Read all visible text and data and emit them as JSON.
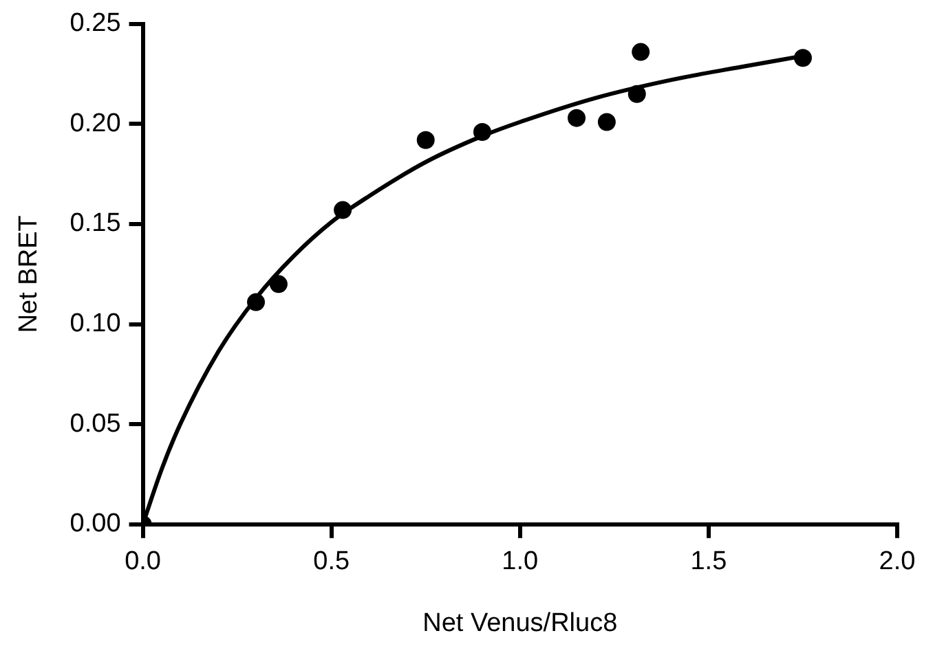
{
  "chart_data": {
    "type": "scatter",
    "xlabel": "Net Venus/Rluc8",
    "ylabel": "Net BRET",
    "xlim": [
      0,
      2.0
    ],
    "xticks": [
      {
        "value": 0,
        "label": "0.0"
      },
      {
        "value": 0.5,
        "label": "0.5"
      },
      {
        "value": 1,
        "label": "1.0"
      },
      {
        "value": 1.5,
        "label": "1.5"
      },
      {
        "value": 2,
        "label": "2.0"
      }
    ],
    "ylim": [
      0,
      0.25
    ],
    "yticks": [
      {
        "value": 0,
        "label": "0.00"
      },
      {
        "value": 0.05,
        "label": "0.05"
      },
      {
        "value": 0.1,
        "label": "0.10"
      },
      {
        "value": 0.15,
        "label": "0.15"
      },
      {
        "value": 0.2,
        "label": "0.20"
      },
      {
        "value": 0.25,
        "label": "0.25"
      }
    ],
    "grid": false,
    "legend": false,
    "marker": "circle",
    "series": [
      {
        "type": "scatter",
        "color": "#000000",
        "x": [
          0,
          0.3,
          0.36,
          0.53,
          0.75,
          0.9,
          1.15,
          1.23,
          1.31,
          1.32,
          1.75
        ],
        "values": [
          0,
          0.111,
          0.12,
          0.157,
          0.192,
          0.196,
          0.203,
          0.201,
          0.215,
          0.236,
          0.233
        ]
      },
      {
        "type": "line",
        "color": "#000000",
        "marker": "none",
        "x": [
          0,
          0.05,
          0.1,
          0.2,
          0.3,
          0.4,
          0.5,
          0.6,
          0.75,
          0.9,
          1.0,
          1.2,
          1.4,
          1.6,
          1.75
        ],
        "values": [
          0,
          0.0275,
          0.0503,
          0.0862,
          0.113,
          0.134,
          0.151,
          0.164,
          0.181,
          0.194,
          0.201,
          0.213,
          0.222,
          0.229,
          0.234
        ]
      }
    ]
  }
}
